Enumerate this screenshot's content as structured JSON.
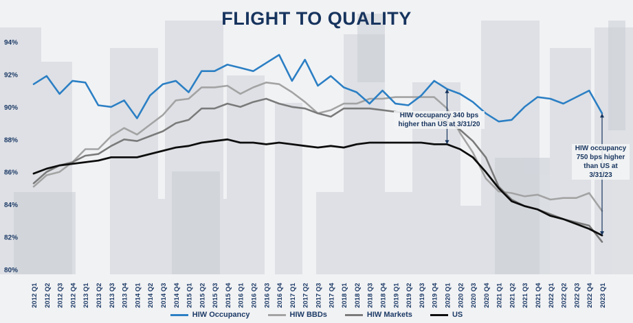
{
  "title": "FLIGHT TO QUALITY",
  "annotations": [
    "HIW occupancy 340 bps higher than US at 3/31/20",
    "HIW occupancy 750 bps higher than US at 3/31/23"
  ],
  "colors": {
    "hiw_occupancy": "#2b7fc4",
    "hiw_bbds": "#a3a3a3",
    "hiw_markets": "#7a7a7a",
    "us": "#0d0d0d",
    "title": "#17345e"
  },
  "chart_data": {
    "type": "line",
    "title": "FLIGHT TO QUALITY",
    "xlabel": "",
    "ylabel": "",
    "ylim": [
      80,
      94
    ],
    "yticks": [
      "80%",
      "82%",
      "84%",
      "86%",
      "88%",
      "90%",
      "92%",
      "94%"
    ],
    "legend_position": "bottom",
    "grid": false,
    "categories": [
      "2012 Q1",
      "2012 Q2",
      "2012 Q3",
      "2012 Q4",
      "2013 Q1",
      "2013 Q2",
      "2013 Q3",
      "2013 Q4",
      "2014 Q1",
      "2014 Q2",
      "2014 Q3",
      "2014 Q4",
      "2015 Q1",
      "2015 Q2",
      "2015 Q3",
      "2015 Q4",
      "2016 Q1",
      "2016 Q2",
      "2016 Q3",
      "2016 Q4",
      "2017 Q1",
      "2017 Q2",
      "2017 Q3",
      "2017 Q4",
      "2018 Q1",
      "2018 Q2",
      "2018 Q3",
      "2018 Q4",
      "2019 Q1",
      "2019 Q2",
      "2019 Q3",
      "2019 Q4",
      "2020 Q1",
      "2020 Q2",
      "2020 Q3",
      "2020 Q4",
      "2021 Q1",
      "2021 Q2",
      "2021 Q3",
      "2021 Q4",
      "2022 Q1",
      "2022 Q2",
      "2022 Q3",
      "2022 Q4",
      "2023 Q1"
    ],
    "series": [
      {
        "name": "HIW Occupancy",
        "values": [
          91.4,
          91.9,
          90.8,
          91.6,
          91.5,
          90.1,
          90.0,
          90.4,
          89.3,
          90.7,
          91.4,
          91.6,
          90.9,
          92.2,
          92.2,
          92.6,
          92.4,
          92.2,
          92.7,
          93.2,
          91.6,
          92.9,
          91.3,
          91.9,
          91.2,
          90.9,
          90.2,
          91.0,
          90.2,
          90.1,
          90.7,
          91.6,
          91.1,
          90.8,
          90.3,
          89.6,
          89.1,
          89.2,
          90.0,
          90.6,
          90.5,
          90.2,
          90.6,
          91.0,
          89.6
        ]
      },
      {
        "name": "HIW BBDs",
        "values": [
          85.1,
          85.8,
          86.0,
          86.6,
          87.4,
          87.4,
          88.2,
          88.7,
          88.3,
          88.9,
          89.5,
          90.4,
          90.5,
          91.2,
          91.2,
          91.3,
          90.8,
          91.2,
          91.5,
          91.4,
          90.9,
          90.3,
          89.6,
          89.8,
          90.2,
          90.2,
          90.5,
          90.5,
          90.6,
          90.6,
          90.6,
          90.6,
          89.9,
          88.4,
          87.2,
          85.6,
          84.8,
          84.7,
          84.5,
          84.6,
          84.3,
          84.4,
          84.4,
          84.7,
          83.6
        ]
      },
      {
        "name": "HIW Markets",
        "values": [
          85.3,
          86.0,
          86.4,
          86.6,
          87.0,
          87.1,
          87.6,
          88.0,
          87.9,
          88.2,
          88.5,
          89.0,
          89.2,
          89.9,
          89.9,
          90.2,
          90.0,
          90.3,
          90.5,
          90.2,
          90.0,
          89.9,
          89.6,
          89.4,
          89.9,
          89.9,
          89.9,
          89.8,
          89.7,
          89.6,
          89.5,
          89.3,
          89.1,
          88.6,
          87.9,
          86.9,
          85.1,
          84.3,
          83.9,
          83.7,
          83.4,
          83.1,
          82.9,
          82.7,
          81.7
        ]
      },
      {
        "name": "US",
        "values": [
          85.9,
          86.2,
          86.4,
          86.5,
          86.6,
          86.7,
          86.9,
          86.9,
          86.9,
          87.1,
          87.3,
          87.5,
          87.6,
          87.8,
          87.9,
          88.0,
          87.8,
          87.8,
          87.7,
          87.8,
          87.7,
          87.6,
          87.5,
          87.6,
          87.5,
          87.7,
          87.8,
          87.8,
          87.8,
          87.8,
          87.8,
          87.7,
          87.7,
          87.4,
          86.9,
          86.0,
          85.0,
          84.2,
          83.9,
          83.7,
          83.3,
          83.1,
          82.8,
          82.5,
          82.1
        ]
      }
    ]
  }
}
